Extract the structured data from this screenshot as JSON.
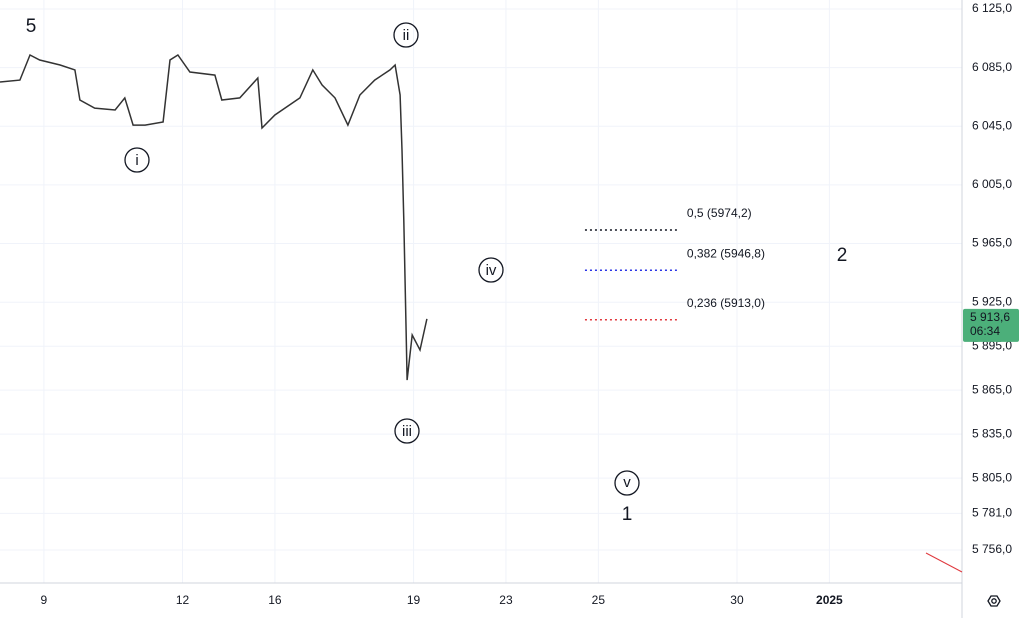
{
  "chart_data": {
    "type": "line",
    "x": [
      -0.95,
      -0.52,
      -0.3,
      -0.09,
      0.35,
      0.67,
      0.78,
      1.1,
      1.54,
      1.75,
      1.93,
      2.19,
      2.58,
      2.73,
      2.9,
      3.16,
      3.7,
      3.85,
      4.24,
      4.63,
      4.72,
      5.0,
      5.54,
      5.82,
      6.02,
      6.3,
      6.58,
      6.84,
      7.16,
      7.49,
      7.6,
      7.71,
      7.75,
      7.79,
      7.84,
      7.86,
      7.97,
      8.14,
      8.29
    ],
    "series": [
      {
        "color": "#333333",
        "values": [
          6075.2,
          6076.5,
          6093.6,
          6090.2,
          6086.8,
          6083.4,
          6062.9,
          6057.4,
          6056.1,
          6064.3,
          6045.8,
          6045.8,
          6047.9,
          6090.2,
          6093.6,
          6082.0,
          6079.9,
          6062.9,
          6064.3,
          6077.9,
          6043.8,
          6052.7,
          6064.3,
          6083.4,
          6073.1,
          6064.3,
          6045.8,
          6066.3,
          6076.5,
          6083.4,
          6086.8,
          6066.3,
          6028.8,
          5981.0,
          5906.0,
          5871.9,
          5902.6,
          5892.4,
          5913.6
        ]
      }
    ],
    "xlim": [
      -0.95,
      19.87
    ],
    "xticks": [
      {
        "value": 0,
        "label": "9"
      },
      {
        "value": 3,
        "label": "12"
      },
      {
        "value": 5,
        "label": "16"
      },
      {
        "value": 8,
        "label": "19"
      },
      {
        "value": 10,
        "label": "23"
      },
      {
        "value": 12,
        "label": "25"
      },
      {
        "value": 15,
        "label": "30"
      },
      {
        "value": 17,
        "label": "2025"
      }
    ],
    "ylim": [
      5733.5,
      6131.1
    ],
    "yticks": [
      {
        "value": 6125,
        "label": "6 125,0"
      },
      {
        "value": 6085,
        "label": "6 085,0"
      },
      {
        "value": 6045,
        "label": "6 045,0"
      },
      {
        "value": 6005,
        "label": "6 005,0"
      },
      {
        "value": 5965,
        "label": "5 965,0"
      },
      {
        "value": 5925,
        "label": "5 925,0"
      },
      {
        "value": 5895,
        "label": "5 895,0"
      },
      {
        "value": 5865,
        "label": "5 865,0"
      },
      {
        "value": 5835,
        "label": "5 835,0"
      },
      {
        "value": 5805,
        "label": "5 805,0"
      },
      {
        "value": 5781,
        "label": "5 781,0"
      },
      {
        "value": 5756,
        "label": "5 756,0"
      }
    ],
    "grid": true,
    "fib_x": [
      11.71,
      13.7
    ],
    "fib_levels": [
      {
        "label": "0,5 (5974,2)",
        "value": 5974.2,
        "color": "#131722"
      },
      {
        "label": "0,382 (5946,8)",
        "value": 5946.8,
        "color": "#2933e6"
      },
      {
        "label": "0,236 (5913,0)",
        "value": 5913.0,
        "color": "#e0393e"
      }
    ],
    "last_price": {
      "value": 5913.6,
      "label": "5 913,6",
      "countdown": "06:34",
      "color": "#4caf7a"
    },
    "waves": {
      "w5": "5",
      "i": "i",
      "ii": "ii",
      "iii": "iii",
      "iv": "iv",
      "v": "v",
      "w1": "1",
      "w2": "2"
    }
  }
}
